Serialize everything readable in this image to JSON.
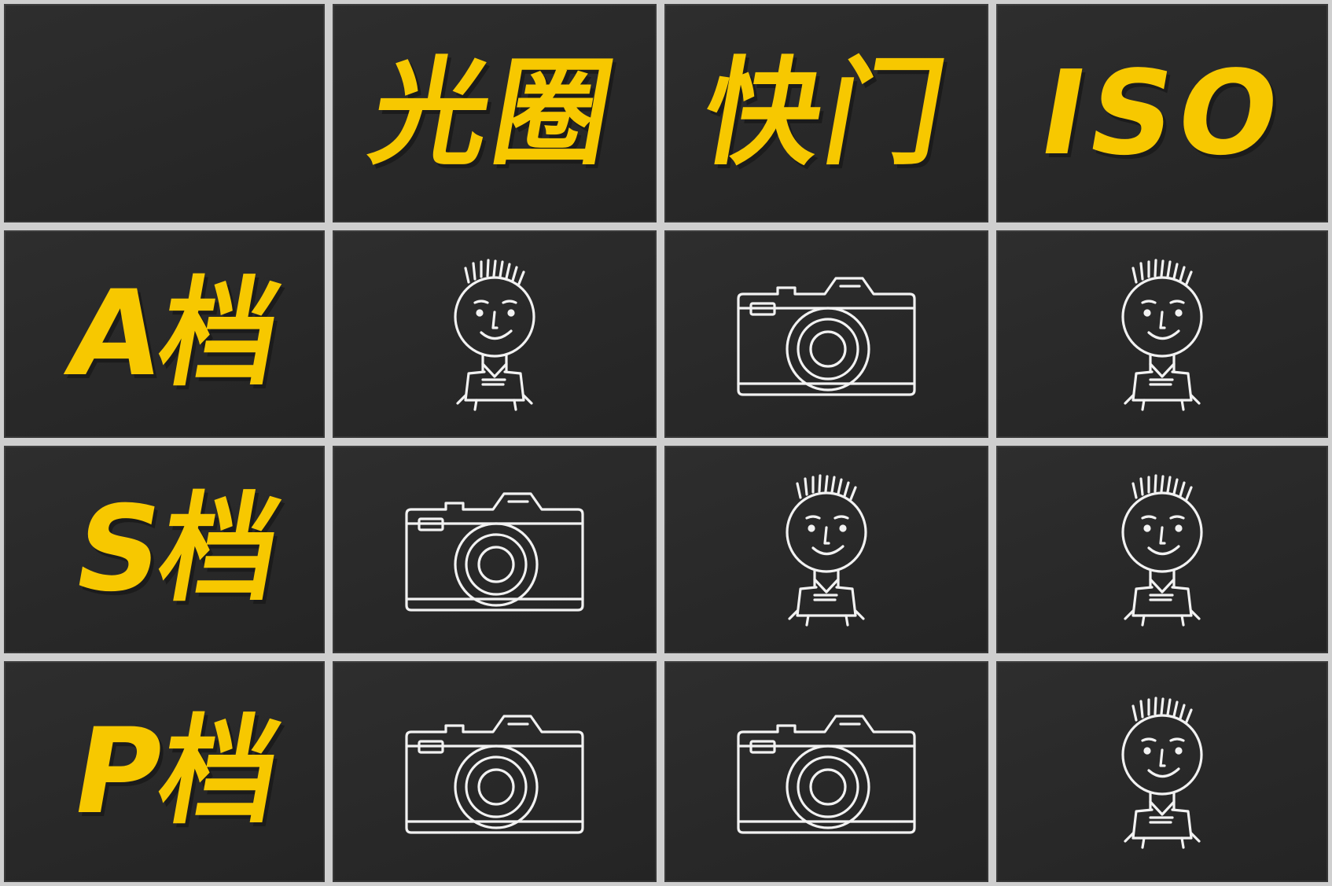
{
  "columns": [
    "光圈",
    "快门",
    "ISO"
  ],
  "rows": [
    {
      "label": "A档",
      "cells": [
        "person-icon",
        "camera-icon",
        "person-icon"
      ]
    },
    {
      "label": "S档",
      "cells": [
        "camera-icon",
        "person-icon",
        "person-icon"
      ]
    },
    {
      "label": "P档",
      "cells": [
        "camera-icon",
        "camera-icon",
        "person-icon"
      ]
    }
  ],
  "colors": {
    "text": "#f7c800",
    "chalk": "#cfcfcf",
    "board": "#262626"
  }
}
